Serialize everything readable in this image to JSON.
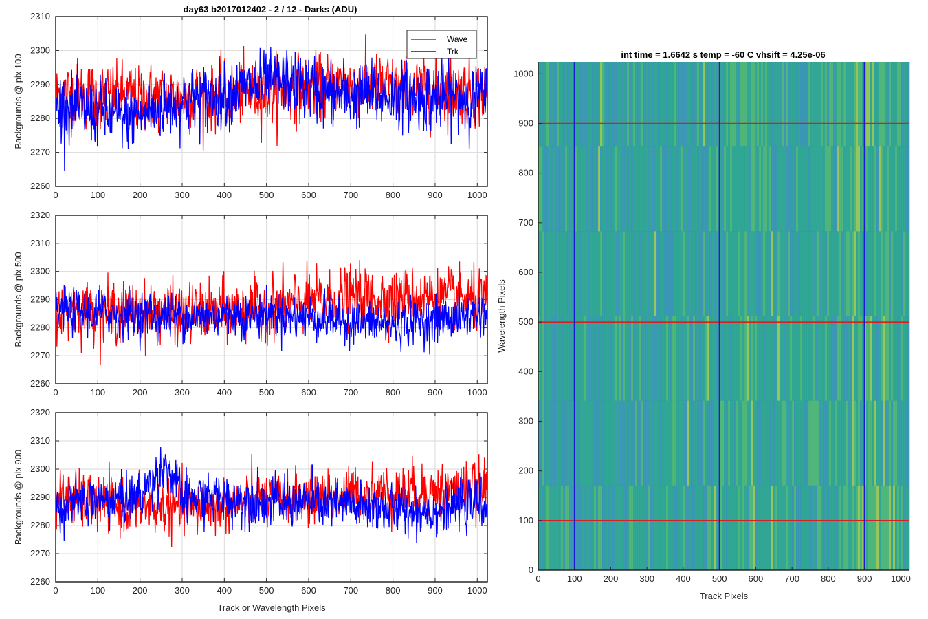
{
  "figure_title": "day63 b2017012402 - 2 / 12 - Darks (ADU)",
  "legend": {
    "wave": "Wave",
    "trk": "Trk"
  },
  "colors": {
    "wave": "#ff0000",
    "trk": "#0000ff",
    "cross_red": "#d42020",
    "cross_blue": "#1a1ad0",
    "grid": "#d9d9d9",
    "axis": "#262626"
  },
  "chart_data": [
    {
      "type": "line",
      "title": "day63 b2017012402 - 2 / 12 - Darks (ADU)",
      "xlabel": "",
      "ylabel": "Backgrounds @ pix 100",
      "xlim": [
        0,
        1024
      ],
      "ylim": [
        2260,
        2310
      ],
      "xticks": [
        "0",
        "100",
        "200",
        "300",
        "400",
        "500",
        "600",
        "700",
        "800",
        "900",
        "1000"
      ],
      "yticks": [
        "2260",
        "2270",
        "2280",
        "2290",
        "2300",
        "2310"
      ],
      "grid": true,
      "legend_position": "top-right",
      "series": [
        {
          "name": "Wave",
          "mean": 2287,
          "std": 5.5,
          "trend": [
            [
              0,
              2287
            ],
            [
              300,
              2286
            ],
            [
              500,
              2288
            ],
            [
              700,
              2290
            ],
            [
              900,
              2288
            ],
            [
              1024,
              2288
            ]
          ]
        },
        {
          "name": "Trk",
          "mean": 2285,
          "std": 5.5,
          "trend": [
            [
              0,
              2284
            ],
            [
              170,
              2280
            ],
            [
              300,
              2285
            ],
            [
              550,
              2291
            ],
            [
              650,
              2287
            ],
            [
              1024,
              2286
            ]
          ]
        }
      ]
    },
    {
      "type": "line",
      "title": "",
      "xlabel": "",
      "ylabel": "Backgrounds @ pix 500",
      "xlim": [
        0,
        1024
      ],
      "ylim": [
        2260,
        2320
      ],
      "xticks": [
        "0",
        "100",
        "200",
        "300",
        "400",
        "500",
        "600",
        "700",
        "800",
        "900",
        "1000"
      ],
      "yticks": [
        "2260",
        "2270",
        "2280",
        "2290",
        "2300",
        "2310",
        "2320"
      ],
      "grid": true,
      "series": [
        {
          "name": "Wave",
          "mean": 2287,
          "std": 6,
          "trend": [
            [
              0,
              2287
            ],
            [
              300,
              2285
            ],
            [
              500,
              2287
            ],
            [
              700,
              2291
            ],
            [
              900,
              2291
            ],
            [
              1024,
              2289
            ]
          ]
        },
        {
          "name": "Trk",
          "mean": 2285,
          "std": 4.5,
          "trend": [
            [
              0,
              2286
            ],
            [
              300,
              2284
            ],
            [
              500,
              2285
            ],
            [
              800,
              2281
            ],
            [
              1024,
              2285
            ]
          ]
        }
      ]
    },
    {
      "type": "line",
      "title": "",
      "xlabel": "Track or Wavelength Pixels",
      "ylabel": "Backgrounds @ pix 900",
      "xlim": [
        0,
        1024
      ],
      "ylim": [
        2260,
        2320
      ],
      "xticks": [
        "0",
        "100",
        "200",
        "300",
        "400",
        "500",
        "600",
        "700",
        "800",
        "900",
        "1000"
      ],
      "yticks": [
        "2260",
        "2270",
        "2280",
        "2290",
        "2300",
        "2310",
        "2320"
      ],
      "grid": true,
      "series": [
        {
          "name": "Wave",
          "mean": 2287,
          "std": 5.5,
          "trend": [
            [
              0,
              2290
            ],
            [
              150,
              2287
            ],
            [
              300,
              2286
            ],
            [
              500,
              2289
            ],
            [
              800,
              2292
            ],
            [
              1024,
              2293
            ]
          ]
        },
        {
          "name": "Trk",
          "mean": 2289,
          "std": 5,
          "trend": [
            [
              0,
              2287
            ],
            [
              200,
              2290
            ],
            [
              260,
              2302
            ],
            [
              300,
              2290
            ],
            [
              600,
              2288
            ],
            [
              900,
              2285
            ],
            [
              1024,
              2289
            ]
          ]
        }
      ]
    },
    {
      "type": "heatmap",
      "title": "int time = 1.6642 s    temp = -60 C    vhsift = 4.25e-06",
      "xlabel": "Track Pixels",
      "ylabel": "Wavelength Pixels",
      "xlim": [
        0,
        1024
      ],
      "ylim": [
        0,
        1024
      ],
      "xticks": [
        "0",
        "100",
        "200",
        "300",
        "400",
        "500",
        "600",
        "700",
        "800",
        "900",
        "1000"
      ],
      "yticks": [
        "0",
        "100",
        "200",
        "300",
        "400",
        "500",
        "600",
        "700",
        "800",
        "900",
        "1000"
      ],
      "colormap": [
        "#2c8fb0",
        "#21a08c",
        "#41b070",
        "#8fc052"
      ],
      "marker_rows": [
        100,
        500,
        900
      ],
      "marker_cols": [
        100,
        500,
        900
      ],
      "grid": false
    }
  ]
}
